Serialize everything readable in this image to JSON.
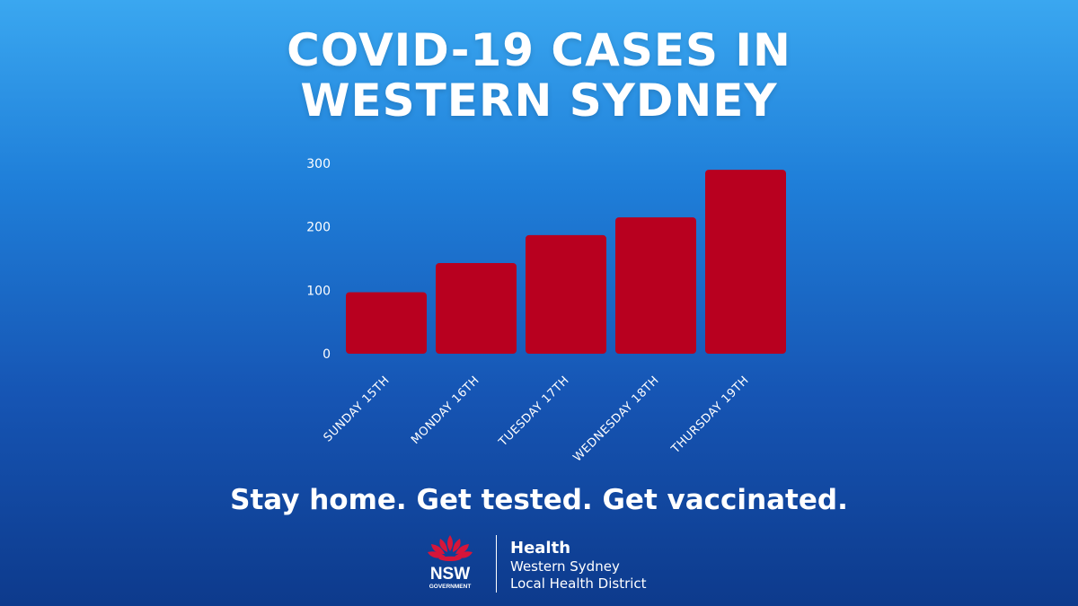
{
  "header": {
    "title_line1": "COVID-19 CASES IN",
    "title_line2": "WESTERN SYDNEY"
  },
  "chart_data": {
    "type": "bar",
    "title": "COVID-19 CASES IN WESTERN SYDNEY",
    "categories": [
      "SUNDAY 15TH",
      "MONDAY 16TH",
      "TUESDAY 17TH",
      "WEDNESDAY 18TH",
      "THURSDAY 19TH"
    ],
    "values": [
      97,
      143,
      187,
      215,
      290
    ],
    "ylim": [
      0,
      300
    ],
    "yticks": [
      0,
      100,
      200,
      300
    ],
    "xlabel": "",
    "ylabel": "",
    "grid": false,
    "bar_color": "#b8001f"
  },
  "footer": {
    "tagline": "Stay home. Get tested. Get vaccinated.",
    "logo": {
      "wordmark": "NSW",
      "wordmark_sub": "GOVERNMENT",
      "department": "Health",
      "district_line1": "Western Sydney",
      "district_line2": "Local Health District",
      "flower_color": "#d7153a"
    }
  }
}
